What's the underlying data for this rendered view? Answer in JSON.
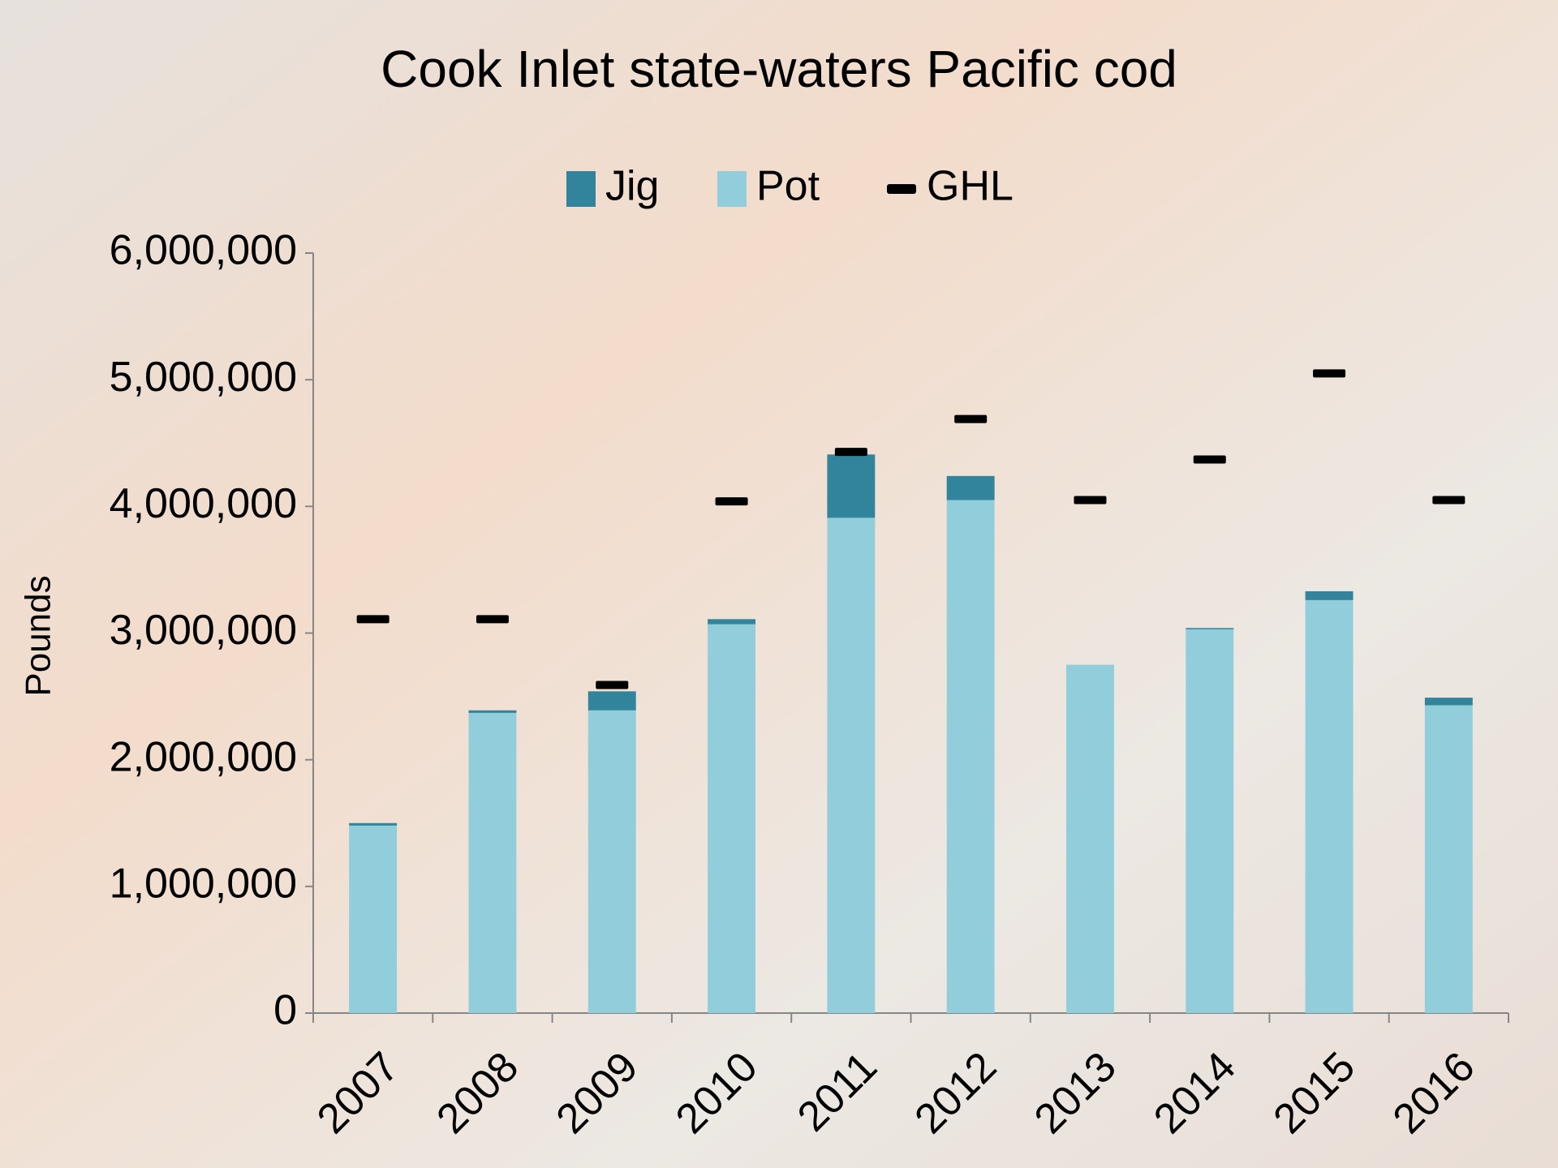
{
  "chart_data": {
    "type": "bar",
    "stacked": true,
    "title": "Cook Inlet state-waters Pacific cod",
    "y_label": "Pounds",
    "categories": [
      "2007",
      "2008",
      "2009",
      "2010",
      "2011",
      "2012",
      "2013",
      "2014",
      "2015",
      "2016"
    ],
    "series": [
      {
        "name": "Jig",
        "color": "#31849b",
        "values": [
          20000,
          20000,
          150000,
          40000,
          500000,
          190000,
          0,
          10000,
          70000,
          60000
        ]
      },
      {
        "name": "Pot",
        "color": "#92cddc",
        "values": [
          1480000,
          2370000,
          2390000,
          3070000,
          3910000,
          4050000,
          2750000,
          3030000,
          3260000,
          2430000
        ]
      },
      {
        "name": "GHL",
        "color": "#000000",
        "type": "marker",
        "values": [
          3110000,
          3110000,
          2590000,
          4040000,
          4430000,
          4690000,
          4050000,
          4370000,
          5050000,
          4050000
        ]
      }
    ],
    "ylim": [
      0,
      6000000
    ],
    "yticks": [
      0,
      {
        "value": 1000000,
        "label": "1,000,000"
      },
      {
        "value": 2000000,
        "label": "2,000,000"
      },
      {
        "value": 3000000,
        "label": "3,000,000"
      },
      {
        "value": 4000000,
        "label": "4,000,000"
      },
      {
        "value": 5000000,
        "label": "5,000,000"
      },
      {
        "value": 6000000,
        "label": "6,000,000"
      }
    ],
    "grid": false
  }
}
